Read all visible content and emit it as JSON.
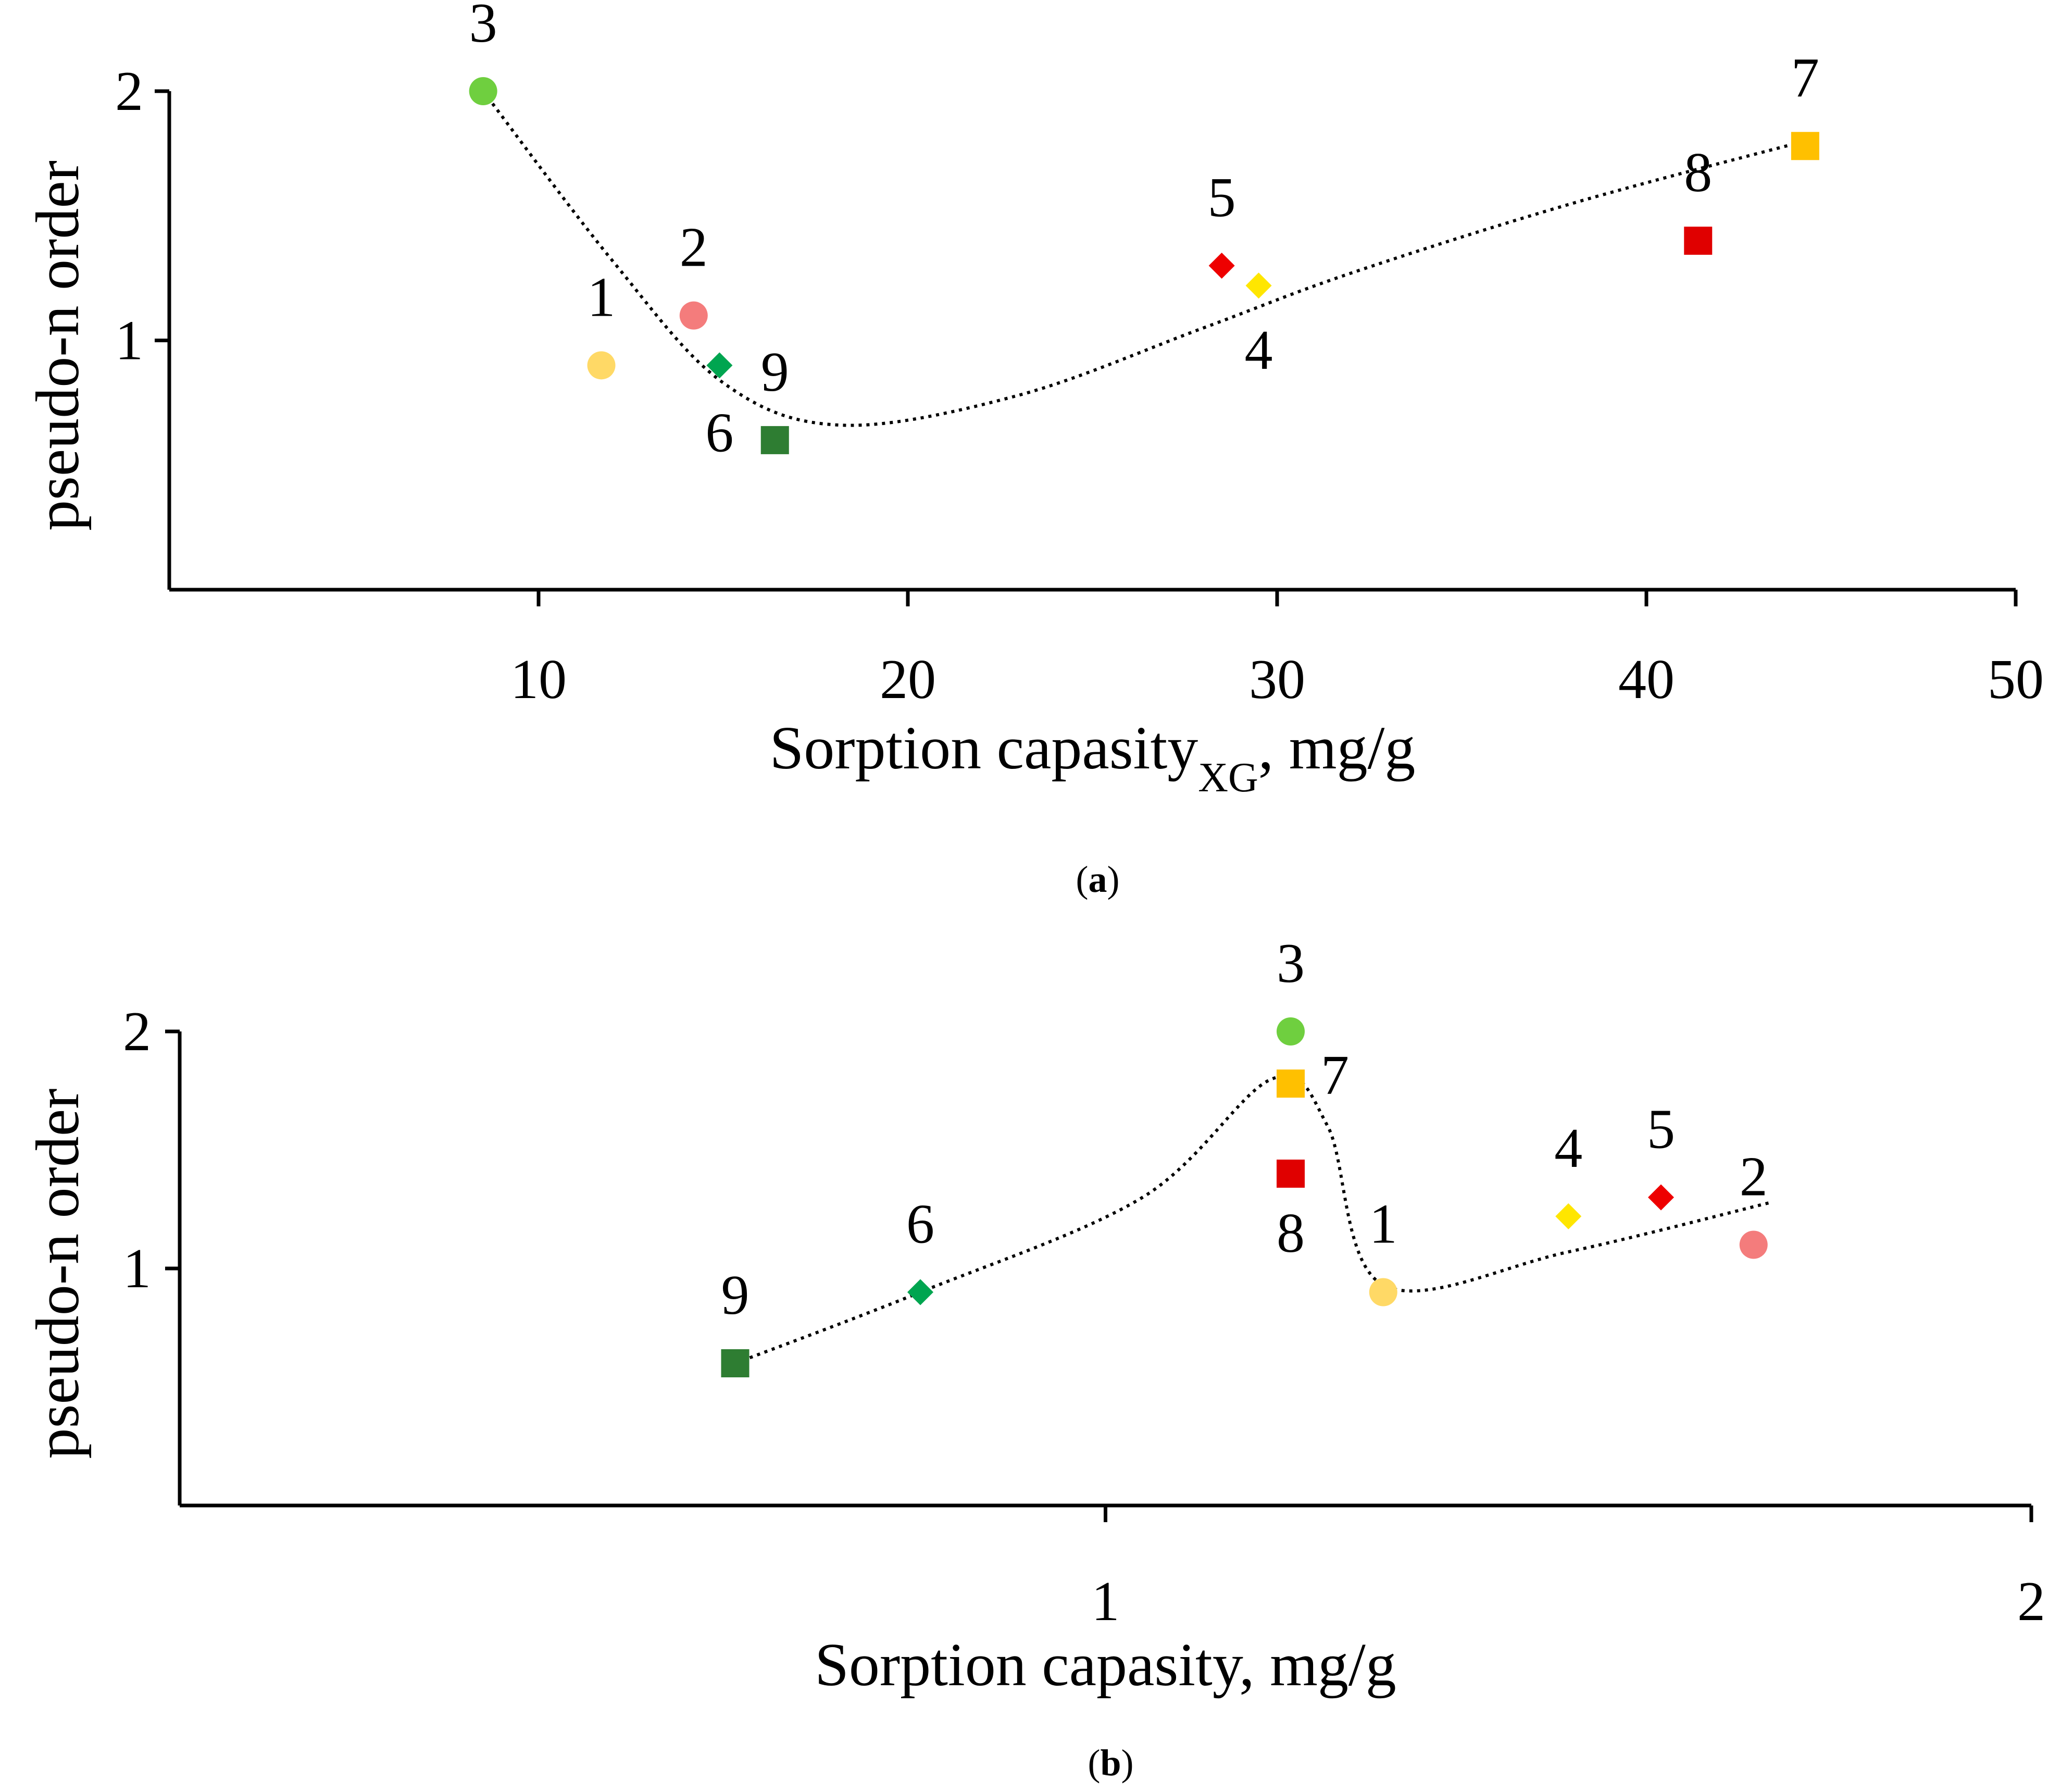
{
  "chart_data": [
    {
      "type": "scatter",
      "panel_label": "a",
      "title": "",
      "xlabel": "Sorption capasity",
      "xlabel_subscript": "XG",
      "xlabel_suffix": ", mg/g",
      "ylabel": "pseudo-n order",
      "xlim": [
        0,
        50
      ],
      "ylim": [
        0,
        2
      ],
      "xticks": [
        10,
        20,
        30,
        40,
        50
      ],
      "yticks": [
        1,
        2
      ],
      "grid": false,
      "trendline": "dotted smooth curve through points",
      "points": [
        {
          "label": "1",
          "x": 11.7,
          "y": 0.9,
          "marker": "circle",
          "color": "#FFD966"
        },
        {
          "label": "2",
          "x": 14.2,
          "y": 1.1,
          "marker": "circle",
          "color": "#F47C7C"
        },
        {
          "label": "3",
          "x": 8.5,
          "y": 2.0,
          "marker": "circle",
          "color": "#6FCF3F"
        },
        {
          "label": "4",
          "x": 29.5,
          "y": 1.22,
          "marker": "diamond",
          "color": "#FFE600"
        },
        {
          "label": "5",
          "x": 28.5,
          "y": 1.3,
          "marker": "diamond",
          "color": "#EE0000"
        },
        {
          "label": "6",
          "x": 14.9,
          "y": 0.9,
          "marker": "diamond",
          "color": "#00A550"
        },
        {
          "label": "7",
          "x": 44.3,
          "y": 1.78,
          "marker": "square",
          "color": "#FFC000"
        },
        {
          "label": "8",
          "x": 41.4,
          "y": 1.4,
          "marker": "square",
          "color": "#E00000"
        },
        {
          "label": "9",
          "x": 16.4,
          "y": 0.6,
          "marker": "square",
          "color": "#2E7D32"
        }
      ]
    },
    {
      "type": "scatter",
      "panel_label": "b",
      "title": "",
      "xlabel": "Sorption capasity, mg/g",
      "ylabel": "pseudo-n order",
      "xlim": [
        0,
        2
      ],
      "ylim": [
        0,
        2
      ],
      "xticks": [
        1,
        2
      ],
      "yticks": [
        1,
        2
      ],
      "grid": false,
      "trendline": "dotted smooth curve through points",
      "points": [
        {
          "label": "1",
          "x": 1.3,
          "y": 0.9,
          "marker": "circle",
          "color": "#FFD966"
        },
        {
          "label": "2",
          "x": 1.7,
          "y": 1.1,
          "marker": "circle",
          "color": "#F47C7C"
        },
        {
          "label": "3",
          "x": 1.2,
          "y": 2.0,
          "marker": "circle",
          "color": "#6FCF3F"
        },
        {
          "label": "4",
          "x": 1.5,
          "y": 1.22,
          "marker": "diamond",
          "color": "#FFE600"
        },
        {
          "label": "5",
          "x": 1.6,
          "y": 1.3,
          "marker": "diamond",
          "color": "#EE0000"
        },
        {
          "label": "6",
          "x": 0.8,
          "y": 0.9,
          "marker": "diamond",
          "color": "#00A550"
        },
        {
          "label": "7",
          "x": 1.2,
          "y": 1.78,
          "marker": "square",
          "color": "#FFC000"
        },
        {
          "label": "8",
          "x": 1.2,
          "y": 1.4,
          "marker": "square",
          "color": "#E00000"
        },
        {
          "label": "9",
          "x": 0.6,
          "y": 0.6,
          "marker": "square",
          "color": "#2E7D32"
        }
      ]
    }
  ]
}
